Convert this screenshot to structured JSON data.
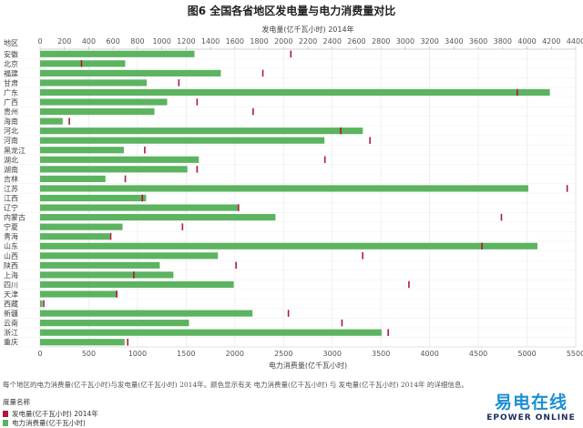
{
  "title": "图6 全国各省地区发电量与电力消费量对比",
  "description": "每个地区的电力消费量(亿千瓦小时)与发电量(亿千瓦小时) 2014年。颜色显示有关 电力消费量(亿千瓦小时) 与 发电量(亿千瓦小时) 2014年 的详细信息。",
  "legend": {
    "title": "度量名称",
    "items": [
      "发电量(亿千瓦小时) 2014年",
      "电力消费量(亿千瓦小时)"
    ]
  },
  "logo": {
    "cn": "易电在线",
    "en": "EPOWER ONLINE"
  },
  "colors": {
    "consumption": "#5cb360",
    "generation": "#b0183d"
  },
  "chart_data": {
    "type": "bar",
    "orientation": "horizontal",
    "category_axis_label": "地区",
    "top_axis_label": "发电量(亿千瓦小时) 2014年",
    "bottom_axis_label": "电力消费量(亿千瓦小时)",
    "top_axis_range": [
      0,
      4400
    ],
    "bottom_axis_range": [
      0,
      5500
    ],
    "top_ticks": [
      0,
      200,
      400,
      600,
      800,
      1000,
      1200,
      1400,
      1600,
      1800,
      2000,
      2200,
      2400,
      2600,
      2800,
      3000,
      3200,
      3400,
      3600,
      3800,
      4000,
      4200,
      4400
    ],
    "bottom_ticks": [
      0,
      500,
      1000,
      1500,
      2000,
      2500,
      3000,
      3500,
      4000,
      4500,
      5000,
      5500
    ],
    "grid": true,
    "categories": [
      "安徽",
      "北京",
      "福建",
      "甘肃",
      "广东",
      "广西",
      "贵州",
      "海南",
      "河北",
      "河南",
      "黑龙江",
      "湖北",
      "湖南",
      "吉林",
      "江苏",
      "江西",
      "辽宁",
      "内蒙古",
      "宁夏",
      "青海",
      "山东",
      "山西",
      "陕西",
      "上海",
      "四川",
      "天津",
      "西藏",
      "新疆",
      "云南",
      "浙江",
      "重庆"
    ],
    "series": [
      {
        "name": "电力消费量(亿千瓦小时)",
        "axis": "bottom",
        "mark": "bar",
        "values": [
          1585,
          874,
          1856,
          1095,
          5235,
          1305,
          1174,
          232,
          3314,
          2920,
          860,
          1630,
          1513,
          671,
          5013,
          1089,
          2038,
          2417,
          847,
          716,
          5107,
          1826,
          1229,
          1369,
          1989,
          794,
          25,
          2181,
          1529,
          3507,
          868
        ]
      },
      {
        "name": "发电量(亿千瓦小时) 2014年",
        "axis": "top",
        "mark": "tick",
        "values": [
          2060,
          340,
          1830,
          1140,
          3920,
          1290,
          1750,
          240,
          2470,
          2710,
          860,
          2340,
          1290,
          700,
          4330,
          840,
          1630,
          3790,
          1170,
          580,
          3630,
          2650,
          1610,
          770,
          3030,
          630,
          30,
          2040,
          2480,
          2860,
          720
        ]
      }
    ]
  }
}
